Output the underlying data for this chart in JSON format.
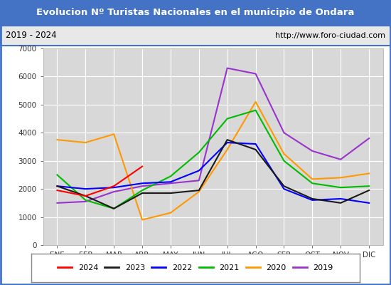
{
  "title": "Evolucion Nº Turistas Nacionales en el municipio de Ondara",
  "subtitle_left": "2019 - 2024",
  "subtitle_right": "http://www.foro-ciudad.com",
  "months": [
    "ENE",
    "FEB",
    "MAR",
    "ABR",
    "MAY",
    "JUN",
    "JUL",
    "AGO",
    "SEP",
    "OCT",
    "NOV",
    "DIC"
  ],
  "series": {
    "2024": [
      1950,
      1750,
      2100,
      2800,
      null,
      null,
      null,
      null,
      null,
      null,
      null,
      null
    ],
    "2023": [
      2100,
      1750,
      1300,
      1850,
      1850,
      1950,
      3750,
      3400,
      2100,
      1650,
      1500,
      1950
    ],
    "2022": [
      2100,
      2000,
      2050,
      2200,
      2250,
      2650,
      3650,
      3600,
      2000,
      1600,
      1650,
      1500
    ],
    "2021": [
      2500,
      1600,
      1300,
      1950,
      2450,
      3300,
      4500,
      4800,
      3000,
      2200,
      2050,
      2100
    ],
    "2020": [
      3750,
      3650,
      3950,
      900,
      1150,
      1900,
      3400,
      5100,
      3250,
      2350,
      2400,
      2550
    ],
    "2019": [
      1500,
      1550,
      1900,
      2100,
      2200,
      2300,
      6300,
      6100,
      4000,
      3350,
      3050,
      3800
    ]
  },
  "colors": {
    "2024": "#ff0000",
    "2023": "#1a1a1a",
    "2022": "#0000ff",
    "2021": "#00bb00",
    "2020": "#ff9900",
    "2019": "#9933cc"
  },
  "ylim": [
    0,
    7000
  ],
  "yticks": [
    0,
    1000,
    2000,
    3000,
    4000,
    5000,
    6000,
    7000
  ],
  "title_bg": "#4472c4",
  "title_color": "#ffffff",
  "subtitle_bg": "#e8e8e8",
  "plot_bg": "#d8d8d8",
  "grid_color": "#ffffff",
  "border_color": "#4472c4",
  "legend_border": "#aaaaaa"
}
